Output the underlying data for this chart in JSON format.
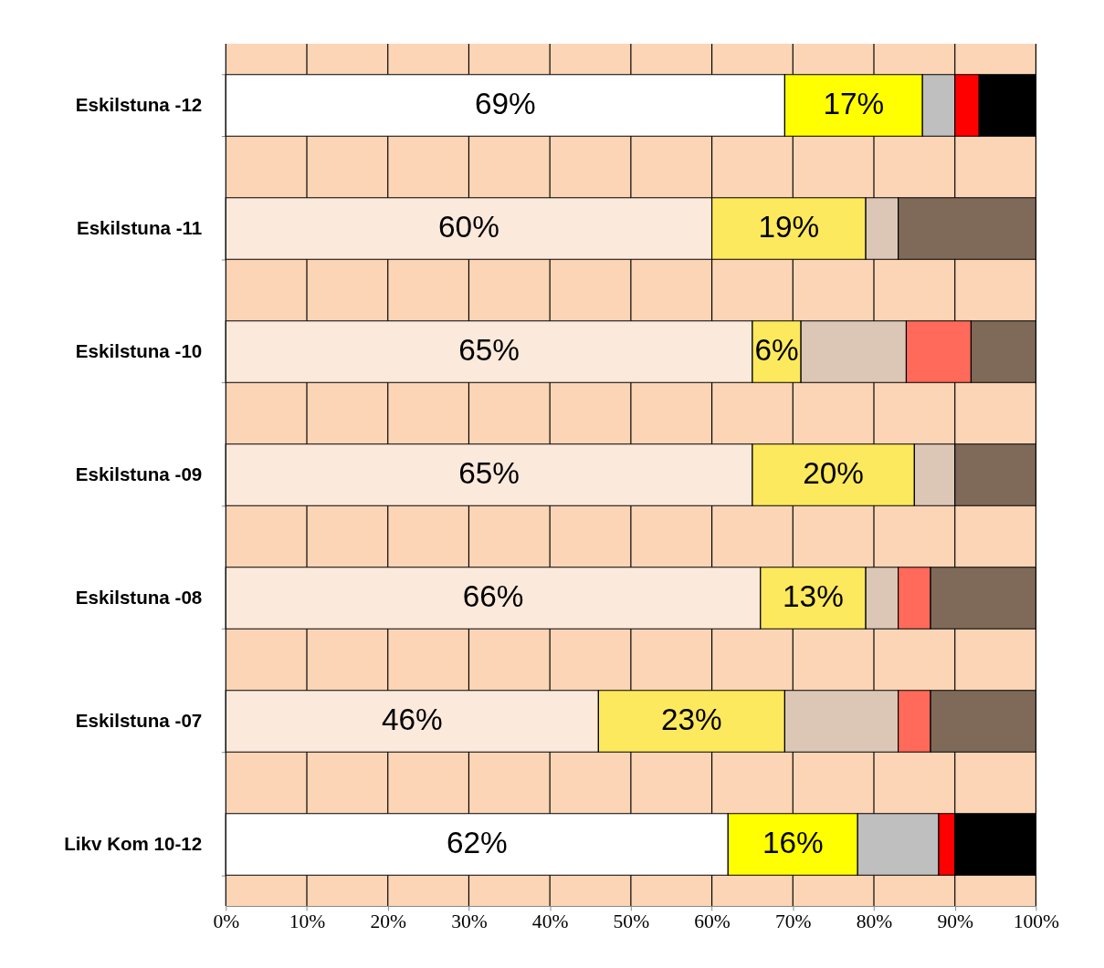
{
  "chart_data": {
    "type": "bar",
    "orientation": "horizontal",
    "stacked": true,
    "categories": [
      "Eskilstuna -12",
      "Eskilstuna -11",
      "Eskilstuna -10",
      "Eskilstuna -09",
      "Eskilstuna -08",
      "Eskilstuna -07",
      "Likv Kom 10-12"
    ],
    "series": [
      {
        "colors": [
          "#ffffff",
          "#fbe9dc",
          "#fbe9dc",
          "#fbe9dc",
          "#fbe9dc",
          "#fbe9dc",
          "#ffffff"
        ],
        "values": [
          69,
          60,
          65,
          65,
          66,
          46,
          62
        ],
        "value_labels": [
          "69%",
          "60%",
          "65%",
          "65%",
          "66%",
          "46%",
          "62%"
        ]
      },
      {
        "colors": [
          "#ffff00",
          "#fde95d",
          "#fde95d",
          "#fde95d",
          "#fde95d",
          "#fde95d",
          "#ffff00"
        ],
        "values": [
          17,
          19,
          6,
          20,
          13,
          23,
          16
        ],
        "value_labels": [
          "17%",
          "19%",
          "6%",
          "20%",
          "13%",
          "23%",
          "16%"
        ]
      },
      {
        "colors": [
          "#bfbfbf",
          "#dcc7b6",
          "#dcc7b6",
          "#dcc7b6",
          "#dcc7b6",
          "#dcc7b6",
          "#bfbfbf"
        ],
        "values": [
          4,
          4,
          13,
          5,
          4,
          14,
          10
        ]
      },
      {
        "colors": [
          "#ff0000",
          "#ff6a5a",
          "#ff6a5a",
          "#ff6a5a",
          "#ff6a5a",
          "#ff6a5a",
          "#ff0000"
        ],
        "values": [
          3,
          0,
          8,
          0,
          4,
          4,
          2
        ]
      },
      {
        "colors": [
          "#000000",
          "#7f6a59",
          "#7f6a59",
          "#7f6a59",
          "#7f6a59",
          "#7f6a59",
          "#000000"
        ],
        "values": [
          7,
          17,
          8,
          10,
          13,
          13,
          10
        ]
      }
    ],
    "xlim": [
      0,
      100
    ],
    "xticks": [
      {
        "value": 0,
        "label": "0%"
      },
      {
        "value": 10,
        "label": "10%"
      },
      {
        "value": 20,
        "label": "20%"
      },
      {
        "value": 30,
        "label": "30%"
      },
      {
        "value": 40,
        "label": "40%"
      },
      {
        "value": 50,
        "label": "50%"
      },
      {
        "value": 60,
        "label": "60%"
      },
      {
        "value": 70,
        "label": "70%"
      },
      {
        "value": 80,
        "label": "80%"
      },
      {
        "value": 90,
        "label": "90%"
      },
      {
        "value": 100,
        "label": "100%"
      }
    ],
    "grid": "x",
    "bands": [
      {
        "axis": "x",
        "from": 0,
        "to": 100,
        "color": "#fbd5b5"
      }
    ]
  }
}
